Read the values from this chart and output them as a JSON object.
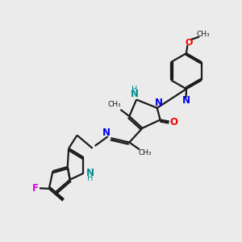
{
  "background_color": "#ebebeb",
  "bond_color": "#1a1a1a",
  "nitrogen_color": "#0000ee",
  "oxygen_color": "#ee0000",
  "fluorine_color": "#dd00dd",
  "nh_color": "#009090",
  "figsize": [
    3.0,
    3.0
  ],
  "dpi": 100,
  "xlim": [
    0,
    10
  ],
  "ylim": [
    0,
    10
  ]
}
